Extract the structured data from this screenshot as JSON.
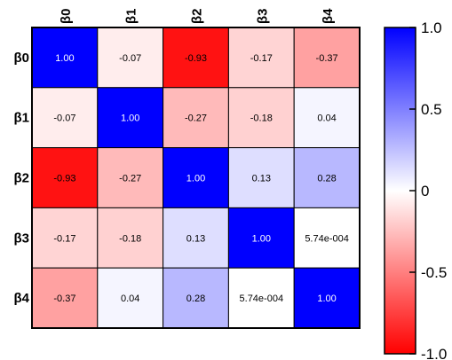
{
  "chart_data": {
    "type": "heatmap",
    "title": "",
    "row_labels": [
      "β0",
      "β1",
      "β2",
      "β3",
      "β4"
    ],
    "col_labels": [
      "β0",
      "β1",
      "β2",
      "β3",
      "β4"
    ],
    "values": [
      [
        1.0,
        -0.07,
        -0.93,
        -0.17,
        -0.37
      ],
      [
        -0.07,
        1.0,
        -0.27,
        -0.18,
        0.04
      ],
      [
        -0.93,
        -0.27,
        1.0,
        0.13,
        0.28
      ],
      [
        -0.17,
        -0.18,
        0.13,
        1.0,
        0.000574
      ],
      [
        -0.37,
        0.04,
        0.28,
        0.000574,
        1.0
      ]
    ],
    "cell_labels": [
      [
        "1.00",
        "-0.07",
        "-0.93",
        "-0.17",
        "-0.37"
      ],
      [
        "-0.07",
        "1.00",
        "-0.27",
        "-0.18",
        "0.04"
      ],
      [
        "-0.93",
        "-0.27",
        "1.00",
        "0.13",
        "0.28"
      ],
      [
        "-0.17",
        "-0.18",
        "0.13",
        "1.00",
        "5.74e-004"
      ],
      [
        "-0.37",
        "0.04",
        "0.28",
        "5.74e-004",
        "1.00"
      ]
    ],
    "color_range": [
      -1.0,
      1.0
    ],
    "colors": {
      "negative": "#ff0000",
      "zero": "#ffffff",
      "positive": "#0000ff"
    },
    "colorbar": {
      "ticks": [
        1.0,
        0.5,
        0,
        -0.5,
        -1.0
      ],
      "tick_labels": [
        "1.0",
        "0.5",
        "0",
        "-0.5",
        "-1.0"
      ]
    }
  }
}
